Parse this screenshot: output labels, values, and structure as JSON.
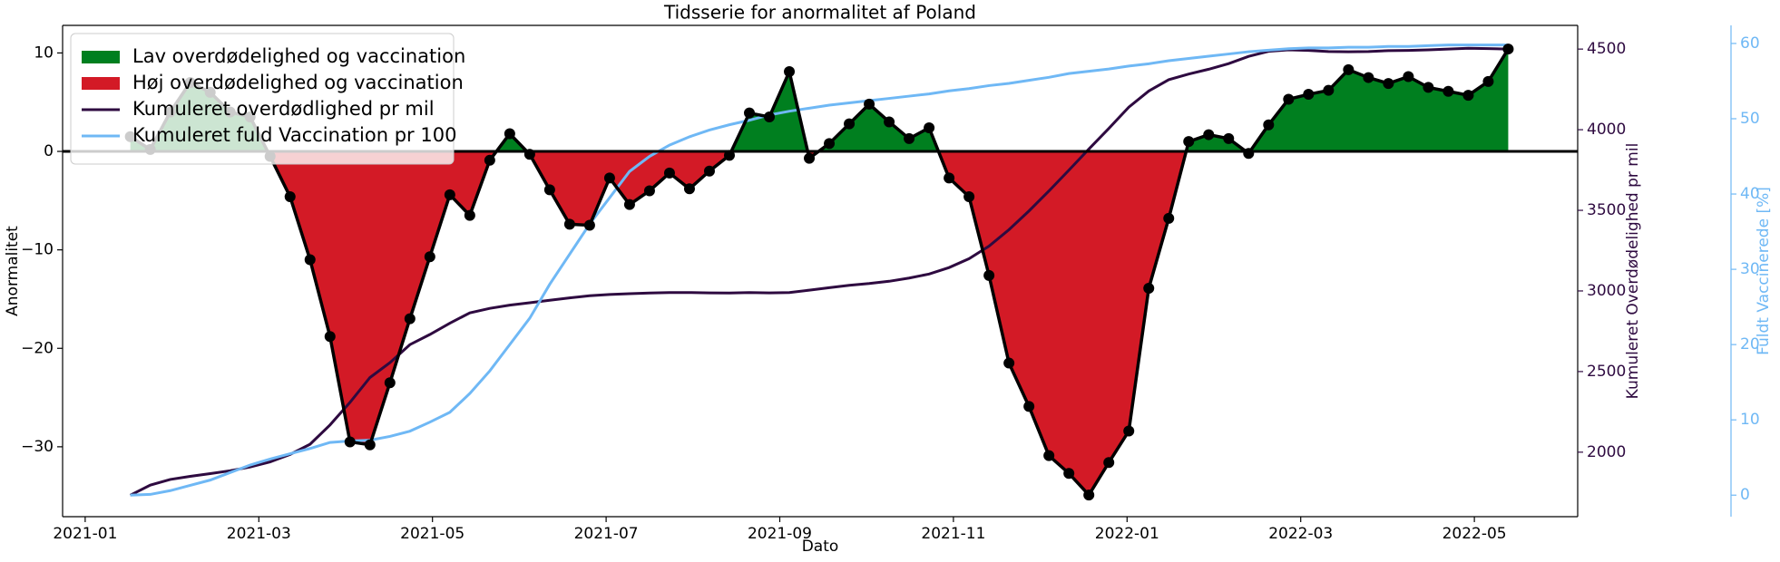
{
  "chart_data": {
    "type": "line",
    "title": "Tidsserie for anormalitet af Poland",
    "xlabel": "Dato",
    "ylabel": "Anormalitet",
    "y2label": "Kumuleret Overdødelighed pr mil",
    "y3label": "Fuldt Vaccinerede [%]",
    "x": [
      0.52,
      0.75,
      0.98,
      1.21,
      1.44,
      1.67,
      1.9,
      2.13,
      2.36,
      2.59,
      2.82,
      3.05,
      3.28,
      3.51,
      3.74,
      3.97,
      4.2,
      4.43,
      4.66,
      4.89,
      5.12,
      5.35,
      5.58,
      5.81,
      6.04,
      6.27,
      6.5,
      6.73,
      6.96,
      7.19,
      7.42,
      7.65,
      7.88,
      8.11,
      8.34,
      8.57,
      8.8,
      9.03,
      9.26,
      9.49,
      9.72,
      9.95,
      10.18,
      10.41,
      10.64,
      10.87,
      11.1,
      11.33,
      11.56,
      11.79,
      12.02,
      12.25,
      12.48,
      12.71,
      12.94,
      13.17,
      13.4,
      13.63,
      13.86,
      14.09,
      14.32,
      14.55,
      14.78,
      15.01,
      15.24,
      15.47,
      15.7,
      15.93,
      16.16,
      16.39
    ],
    "xlim": [
      -0.26,
      17.19
    ],
    "xticks": [
      {
        "value": 0,
        "label": "2021-01"
      },
      {
        "value": 2,
        "label": "2021-03"
      },
      {
        "value": 4,
        "label": "2021-05"
      },
      {
        "value": 6,
        "label": "2021-07"
      },
      {
        "value": 8,
        "label": "2021-09"
      },
      {
        "value": 10,
        "label": "2021-11"
      },
      {
        "value": 12,
        "label": "2022-01"
      },
      {
        "value": 14,
        "label": "2022-03"
      },
      {
        "value": 16,
        "label": "2022-05"
      }
    ],
    "ylim": [
      -37.1,
      12.8
    ],
    "yticks": [
      {
        "value": -30,
        "label": "−30"
      },
      {
        "value": -20,
        "label": "−20"
      },
      {
        "value": -10,
        "label": "−10"
      },
      0,
      10
    ],
    "y2lim": [
      1600,
      4647
    ],
    "y2ticks": [
      2000,
      2500,
      3000,
      3500,
      4000,
      4500
    ],
    "y3lim": [
      -2.86,
      62.4
    ],
    "y3ticks": [
      0,
      10,
      20,
      30,
      40,
      50,
      60
    ],
    "legend": "upper left",
    "anomaly": {
      "color": "#000000",
      "values": [
        1.5,
        0.2,
        4,
        7,
        6,
        4,
        3.5,
        -0.5,
        -4.6,
        -11,
        -18.8,
        -29.5,
        -29.8,
        -23.5,
        -17,
        -10.7,
        -4.4,
        -6.5,
        -0.9,
        1.8,
        -0.3,
        -3.9,
        -7.4,
        -7.5,
        -2.7,
        -5.4,
        -4,
        -2.2,
        -3.8,
        -2,
        -0.4,
        3.9,
        3.5,
        8.1,
        -0.7,
        0.8,
        2.8,
        4.8,
        3,
        1.3,
        2.4,
        -2.7,
        -4.6,
        -12.6,
        -21.5,
        -25.9,
        -30.9,
        -32.7,
        -34.9,
        -31.6,
        -28.4,
        -13.9,
        -6.8,
        1,
        1.7,
        1.3,
        -0.2,
        2.7,
        5.3,
        5.8,
        6.2,
        8.3,
        7.5,
        6.9,
        7.6,
        6.5,
        6.1,
        5.7,
        7.1,
        10.4
      ],
      "above_fill": {
        "name": "Lav overdødelighed og vaccination",
        "color": "#007f1f"
      },
      "below_fill": {
        "name": "Høj overdødelighed og vaccination",
        "color": "#d31a26"
      }
    },
    "series": [
      {
        "name": "Kumuleret overdødlighed pr mil",
        "color": "#2e0a40",
        "axis": "y2",
        "values": [
          1733,
          1796,
          1831,
          1850,
          1867,
          1885,
          1908,
          1940,
          1986,
          2049,
          2169,
          2309,
          2463,
          2555,
          2667,
          2730,
          2800,
          2864,
          2892,
          2912,
          2927,
          2942,
          2957,
          2970,
          2978,
          2983,
          2987,
          2990,
          2990,
          2988,
          2987,
          2990,
          2988,
          2990,
          3005,
          3020,
          3035,
          3046,
          3060,
          3080,
          3105,
          3145,
          3200,
          3278,
          3380,
          3496,
          3620,
          3749,
          3880,
          4008,
          4140,
          4240,
          4310,
          4345,
          4375,
          4410,
          4455,
          4486,
          4495,
          4492,
          4485,
          4483,
          4485,
          4490,
          4492,
          4495,
          4500,
          4505,
          4503,
          4500
        ]
      },
      {
        "name": "Kumuleret fuld Vaccination pr 100",
        "color": "#6fb8f5",
        "axis": "y3",
        "values": [
          0,
          0.1,
          0.6,
          1.3,
          2,
          3,
          4,
          4.8,
          5.5,
          6.2,
          7,
          7.2,
          7.3,
          7.8,
          8.5,
          9.7,
          11,
          13.5,
          16.5,
          20,
          23.5,
          28,
          32,
          36,
          39.5,
          43,
          45,
          46.5,
          47.6,
          48.5,
          49.2,
          49.8,
          50.5,
          51,
          51.4,
          51.8,
          52.1,
          52.4,
          52.7,
          53,
          53.3,
          53.7,
          54,
          54.4,
          54.7,
          55.1,
          55.5,
          56,
          56.3,
          56.6,
          57,
          57.3,
          57.7,
          58,
          58.3,
          58.6,
          58.9,
          59.1,
          59.3,
          59.4,
          59.4,
          59.5,
          59.5,
          59.6,
          59.6,
          59.7,
          59.8,
          59.8,
          59.8,
          59.8
        ]
      }
    ]
  }
}
